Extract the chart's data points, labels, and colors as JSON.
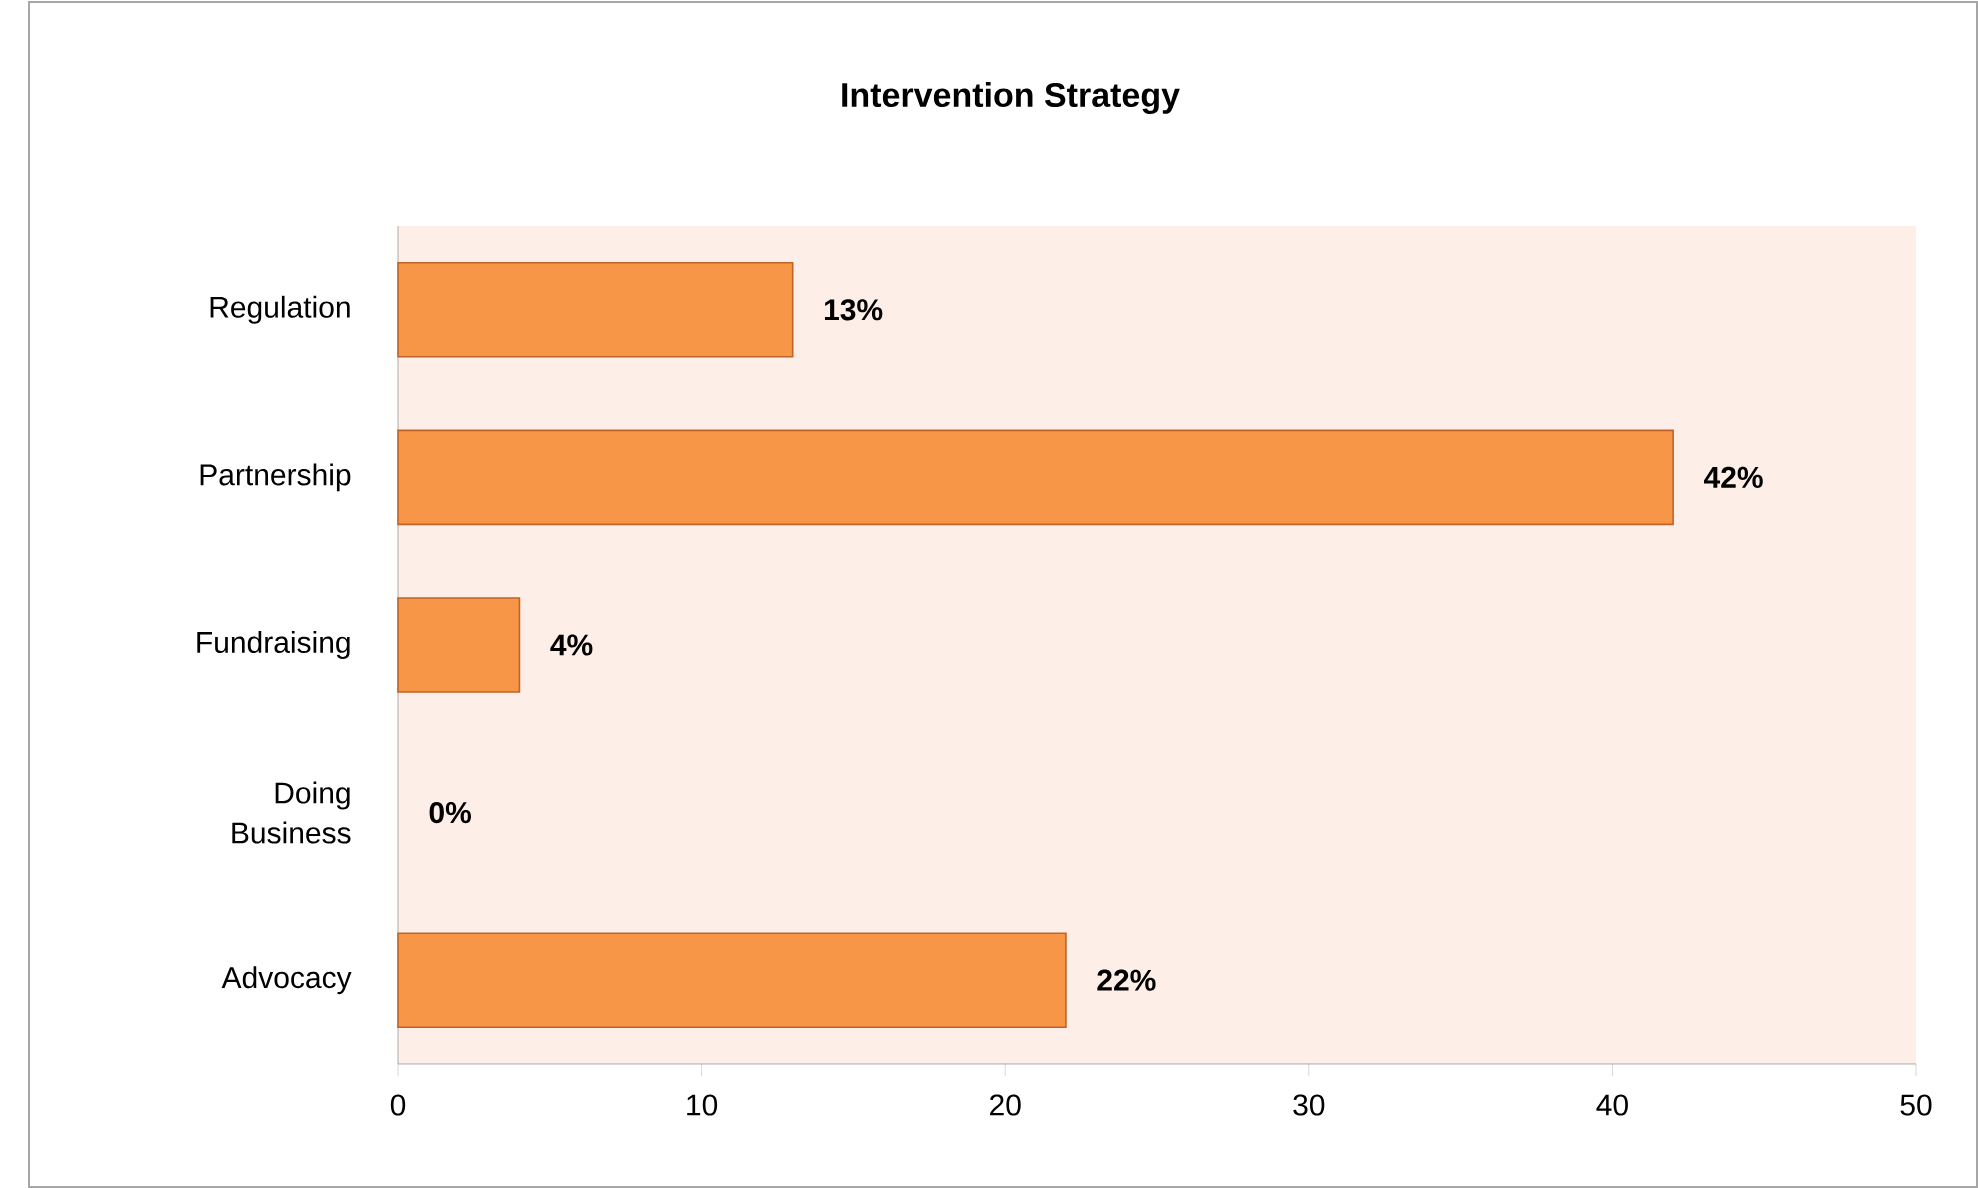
{
  "chart_data": {
    "type": "bar",
    "orientation": "horizontal",
    "title": "Intervention Strategy",
    "categories": [
      "Regulation",
      "Partnership",
      "Fundraising",
      "Doing Business",
      "Advocacy"
    ],
    "values": [
      13,
      42,
      4,
      0,
      22
    ],
    "value_labels": [
      "13%",
      "42%",
      "4%",
      "0%",
      "22%"
    ],
    "color": "#f79646",
    "xlim": [
      0,
      50
    ],
    "xticks": [
      0,
      10,
      20,
      30,
      40,
      50
    ]
  }
}
